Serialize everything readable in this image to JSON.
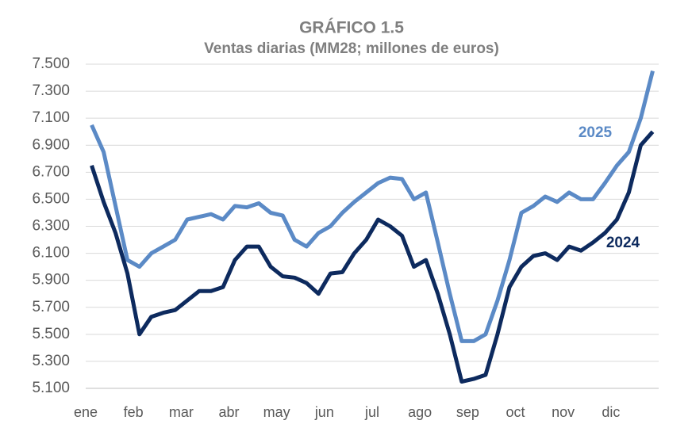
{
  "chart_data": {
    "type": "line",
    "title": "GRÁFICO 1.5",
    "subtitle": "Ventas diarias (MM28; millones de euros)",
    "categories": [
      "ene",
      null,
      null,
      null,
      "feb",
      null,
      null,
      null,
      "mar",
      null,
      null,
      null,
      "abr",
      null,
      null,
      null,
      "may",
      null,
      null,
      null,
      "jun",
      null,
      null,
      null,
      "jul",
      null,
      null,
      null,
      "ago",
      null,
      null,
      null,
      "sep",
      null,
      null,
      null,
      "oct",
      null,
      null,
      null,
      "nov",
      null,
      null,
      null,
      "dic",
      null,
      null,
      null
    ],
    "series": [
      {
        "name": "2025",
        "color": "#5b8ac6",
        "values": [
          7050,
          6850,
          6450,
          6050,
          6000,
          6100,
          6150,
          6200,
          6350,
          6370,
          6390,
          6350,
          6450,
          6440,
          6470,
          6400,
          6380,
          6200,
          6150,
          6250,
          6300,
          6400,
          6480,
          6550,
          6620,
          6660,
          6650,
          6500,
          6550,
          6180,
          5800,
          5450,
          5450,
          5500,
          5750,
          6050,
          6400,
          6450,
          6520,
          6480,
          6550,
          6500,
          6500,
          6620,
          6750,
          6850,
          7100,
          7450
        ]
      },
      {
        "name": "2024",
        "color": "#0d2a5e",
        "values": [
          6750,
          6480,
          6250,
          5950,
          5500,
          5630,
          5660,
          5680,
          5750,
          5820,
          5820,
          5850,
          6050,
          6150,
          6150,
          6000,
          5930,
          5920,
          5880,
          5800,
          5950,
          5960,
          6100,
          6200,
          6350,
          6300,
          6230,
          6000,
          6050,
          5800,
          5500,
          5150,
          5170,
          5200,
          5500,
          5850,
          6000,
          6080,
          6100,
          6050,
          6150,
          6120,
          6180,
          6250,
          6350,
          6550,
          6900,
          7000
        ]
      }
    ],
    "ylim": [
      5100,
      7500
    ],
    "yticks": [
      {
        "value": 5100,
        "label": "5.100"
      },
      {
        "value": 5300,
        "label": "5.300"
      },
      {
        "value": 5500,
        "label": "5.500"
      },
      {
        "value": 5700,
        "label": "5.700"
      },
      {
        "value": 5900,
        "label": "5.900"
      },
      {
        "value": 6100,
        "label": "6.100"
      },
      {
        "value": 6300,
        "label": "6.300"
      },
      {
        "value": 6500,
        "label": "6.500"
      },
      {
        "value": 6700,
        "label": "6.700"
      },
      {
        "value": 6900,
        "label": "6.900"
      },
      {
        "value": 7100,
        "label": "7.100"
      },
      {
        "value": 7300,
        "label": "7.300"
      },
      {
        "value": 7500,
        "label": "7.500"
      }
    ],
    "grid": true
  }
}
